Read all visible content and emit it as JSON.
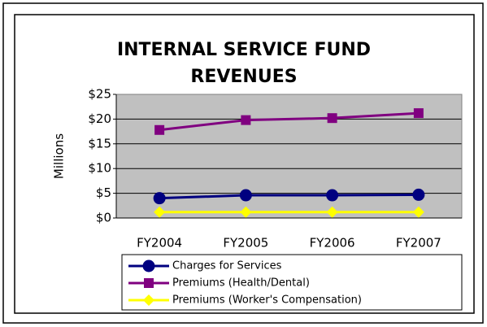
{
  "chart_data": {
    "type": "line",
    "title": [
      "INTERNAL SERVICE FUND",
      "REVENUES"
    ],
    "y_label": "Millions",
    "categories": [
      "FY2004",
      "FY2005",
      "FY2006",
      "FY2007"
    ],
    "series": [
      {
        "name": "Charges for Services",
        "color": "#000080",
        "marker": "circle",
        "values": [
          4.0,
          4.6,
          4.6,
          4.7
        ]
      },
      {
        "name": "Premiums (Health/Dental)",
        "color": "#800080",
        "marker": "square",
        "values": [
          17.8,
          19.8,
          20.2,
          21.2
        ]
      },
      {
        "name": "Premiums (Worker's Compensation)",
        "color": "#ffff00",
        "marker": "diamond",
        "values": [
          1.2,
          1.2,
          1.2,
          1.2
        ]
      }
    ],
    "ylim": [
      0,
      25
    ],
    "yticks": [
      {
        "value": 0,
        "label": "$0"
      },
      {
        "value": 5,
        "label": "$5"
      },
      {
        "value": 10,
        "label": "$10"
      },
      {
        "value": 15,
        "label": "$15"
      },
      {
        "value": 20,
        "label": "$20"
      },
      {
        "value": 25,
        "label": "$25"
      }
    ],
    "grid": true,
    "plot_background": "#c0c0c0",
    "legend": "bottom"
  }
}
